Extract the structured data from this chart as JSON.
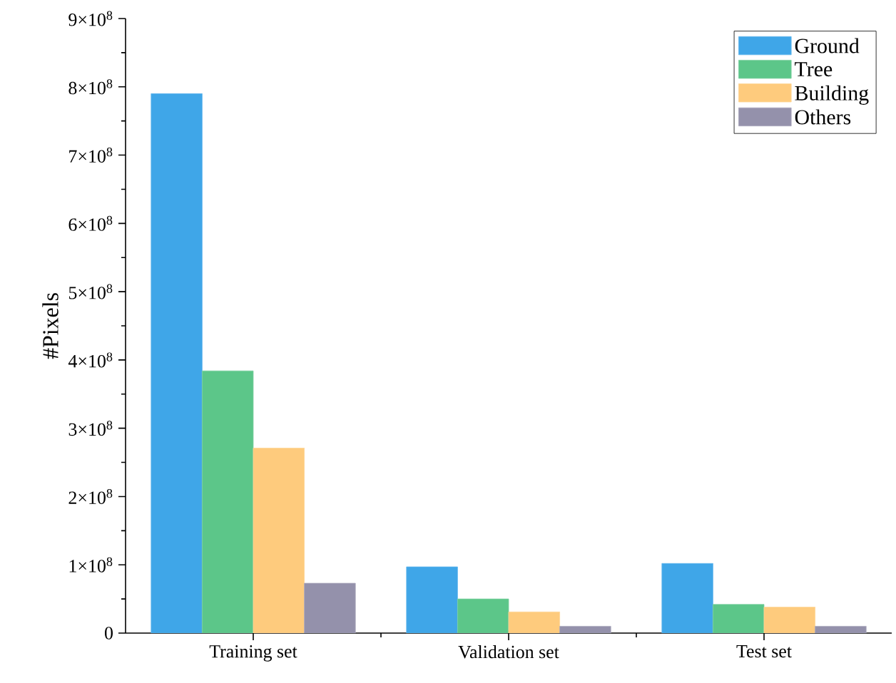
{
  "chart_data": {
    "type": "bar",
    "ylabel": "#Pixels",
    "categories": [
      "Training set",
      "Validation set",
      "Test set"
    ],
    "series": [
      {
        "name": "Ground",
        "color": "#3fa6e8",
        "values": [
          790000000,
          97000000,
          102000000
        ]
      },
      {
        "name": "Tree",
        "color": "#5cc689",
        "values": [
          384000000,
          50000000,
          42000000
        ]
      },
      {
        "name": "Building",
        "color": "#fecb7d",
        "values": [
          271000000,
          31000000,
          38000000
        ]
      },
      {
        "name": "Others",
        "color": "#9491ab",
        "values": [
          73000000,
          10000000,
          10000000
        ]
      }
    ],
    "ylim": [
      0,
      900000000
    ],
    "yticks": [
      0,
      {
        "value": 100000000,
        "label": "1×10$^{8}$"
      },
      {
        "value": 200000000,
        "label": "2×10$^{8}$"
      },
      {
        "value": 300000000,
        "label": "3×10$^{8}$"
      },
      {
        "value": 400000000,
        "label": "4×10$^{8}$"
      },
      {
        "value": 500000000,
        "label": "5×10$^{8}$"
      },
      {
        "value": 600000000,
        "label": "6×10$^{8}$"
      },
      {
        "value": 700000000,
        "label": "7×10$^{8}$"
      },
      {
        "value": 800000000,
        "label": "8×10$^{8}$"
      },
      {
        "value": 900000000,
        "label": "9×10$^{8}$"
      }
    ],
    "grid": false,
    "legend": "top right"
  }
}
